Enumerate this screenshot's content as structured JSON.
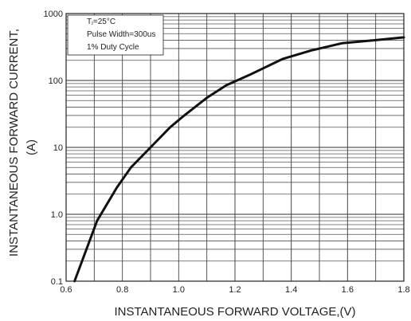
{
  "chart_data": {
    "type": "line",
    "title": "",
    "xlabel": "INSTANTANEOUS FORWARD VOLTAGE,(V)",
    "ylabel_line1": "INSTANTANEOUS FORWARD CURRENT,",
    "ylabel_line2": "(A)",
    "xscale": "linear",
    "yscale": "log",
    "xlim": [
      0.6,
      1.8
    ],
    "ylim": [
      0.1,
      1000
    ],
    "grid": true,
    "x_tick_labels": [
      "0.6",
      "0.8",
      "1.0",
      "1.2",
      "1.4",
      "1.6",
      "1.8"
    ],
    "y_tick_labels": [
      "0.1",
      "1.0",
      "10",
      "100",
      "1000"
    ],
    "legend_box": {
      "placement": "top-left",
      "lines": [
        "Tⱼ=25°C",
        "Pulse Width=300us",
        "1% Duty Cycle"
      ]
    },
    "series": [
      {
        "x": [
          0.63,
          0.71,
          0.78,
          0.83,
          0.9,
          0.97,
          1.02,
          1.1,
          1.17,
          1.25,
          1.37,
          1.47,
          1.58,
          1.7,
          1.8
        ],
        "y": [
          0.1,
          0.8,
          2.5,
          5,
          10,
          20,
          30,
          55,
          85,
          120,
          210,
          280,
          360,
          400,
          440
        ]
      }
    ]
  }
}
